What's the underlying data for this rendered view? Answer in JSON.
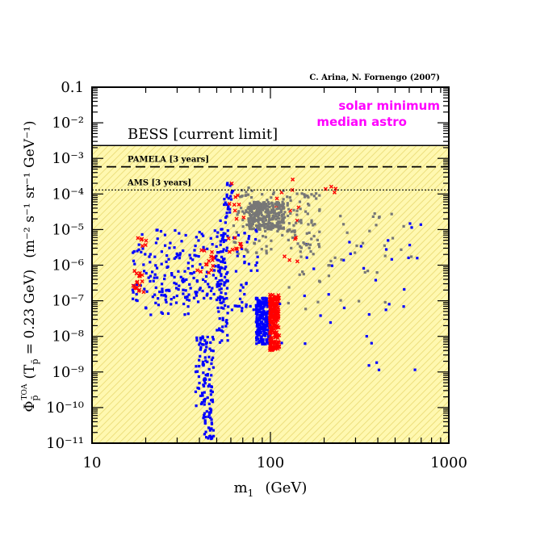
{
  "chart_data": {
    "type": "scatter",
    "credit": "C. Arina, N. Fornengo (2007)",
    "xlabel_main": "m",
    "xlabel_sub": "1",
    "xlabel_unit": "(GeV)",
    "ylabel_left": "Φ",
    "ylabel_sub": "p̄",
    "ylabel_sup": "TOA",
    "ylabel_mid": "(T",
    "ylabel_energy": " = 0.23 GeV)",
    "ylabel_units": "(m⁻² s⁻¹ sr⁻¹ GeV⁻¹)",
    "xscale": "log",
    "yscale": "log",
    "xlim": [
      10,
      1000
    ],
    "ylim": [
      1e-11,
      0.1
    ],
    "xticks": [
      {
        "value": 10,
        "label": "10"
      },
      {
        "value": 100,
        "label": "100"
      },
      {
        "value": 1000,
        "label": "1000"
      }
    ],
    "yticks": [
      {
        "value": 0.1,
        "label": "0.1"
      },
      {
        "value": 0.01,
        "label": "10⁻²"
      },
      {
        "value": 0.001,
        "label": "10⁻³"
      },
      {
        "value": 0.0001,
        "label": "10⁻⁴"
      },
      {
        "value": 1e-05,
        "label": "10⁻⁵"
      },
      {
        "value": 1e-06,
        "label": "10⁻⁶"
      },
      {
        "value": 1e-07,
        "label": "10⁻⁷"
      },
      {
        "value": 1e-08,
        "label": "10⁻⁸"
      },
      {
        "value": 1e-09,
        "label": "10⁻⁹"
      },
      {
        "value": 1e-10,
        "label": "10⁻¹⁰"
      },
      {
        "value": 1e-11,
        "label": "10⁻¹¹"
      }
    ],
    "legend": {
      "line1": "solar minimum",
      "line2": "median astro",
      "color": "#ff00ff",
      "placement": "top-right"
    },
    "limits": [
      {
        "name": "BESS",
        "label": "BESS [current limit]",
        "y": 0.0023,
        "style": "solid"
      },
      {
        "name": "PAMELA",
        "label": "PAMELA [3 years]",
        "y": 0.00058,
        "style": "dashed"
      },
      {
        "name": "AMS",
        "label": "AMS [3 years]",
        "y": 0.00013,
        "style": "dotted"
      }
    ],
    "excluded_region": {
      "from_y": 0.0023,
      "to_y": 1e-11,
      "fill": "#fff8b0",
      "hatch": "#e8d870"
    },
    "colors": {
      "blue": "#0000ff",
      "red": "#ff0000",
      "gray": "#777777",
      "axis": "#000000"
    },
    "series": [
      {
        "name": "blue",
        "marker": "square",
        "color": "#0000ff",
        "seed": 11,
        "groups": [
          {
            "x": [
              16.5,
              56
            ],
            "y": [
              1e-07,
              1e-05
            ],
            "n": 160
          },
          {
            "x": [
              20,
              40
            ],
            "y": [
              4e-08,
              5e-07
            ],
            "n": 50
          },
          {
            "x": [
              38,
              48
            ],
            "y": [
              1e-10,
              1e-08
            ],
            "n": 90
          },
          {
            "x": [
              42,
              48
            ],
            "y": [
              1.2e-11,
              1e-10
            ],
            "n": 35
          },
          {
            "x": [
              50,
              58
            ],
            "y": [
              5e-09,
              2e-05
            ],
            "n": 90
          },
          {
            "x": [
              55,
              62
            ],
            "y": [
              2e-05,
              0.00025
            ],
            "n": 25
          },
          {
            "x": [
              60,
              85
            ],
            "y": [
              4e-08,
              1e-05
            ],
            "n": 45
          },
          {
            "x": [
              83,
              100
            ],
            "y": [
              6e-09,
              1.2e-07
            ],
            "n": 240
          },
          {
            "x": [
              100,
              700
            ],
            "y": [
              1e-09,
              1.5e-05
            ],
            "n": 40
          }
        ]
      },
      {
        "name": "red",
        "marker": "cross",
        "color": "#ff0000",
        "seed": 23,
        "groups": [
          {
            "x": [
              99,
              112
            ],
            "y": [
              4e-09,
              1.5e-07
            ],
            "n": 210
          },
          {
            "x": [
              17,
              20
            ],
            "y": [
              1.5e-07,
              7e-07
            ],
            "n": 18
          },
          {
            "x": [
              18,
              20.5
            ],
            "y": [
              3e-06,
              6e-06
            ],
            "n": 6
          },
          {
            "x": [
              37,
              48
            ],
            "y": [
              6e-07,
              3e-06
            ],
            "n": 14
          },
          {
            "x": [
              58,
              72
            ],
            "y": [
              2e-06,
              0.0002
            ],
            "n": 18
          },
          {
            "x": [
              108,
              145
            ],
            "y": [
              1e-06,
              0.0003
            ],
            "n": 14
          },
          {
            "x": [
              200,
              240
            ],
            "y": [
              0.0001,
              0.0002
            ],
            "n": 4
          }
        ]
      },
      {
        "name": "gray",
        "marker": "square",
        "color": "#777777",
        "seed": 37,
        "groups": [
          {
            "x": [
              75,
              120
            ],
            "y": [
              1e-05,
              6e-05
            ],
            "n": 280
          },
          {
            "x": [
              62,
              190
            ],
            "y": [
              2e-06,
              0.00015
            ],
            "n": 140
          },
          {
            "x": [
              120,
              620
            ],
            "y": [
              5e-08,
              3e-05
            ],
            "n": 50
          }
        ]
      }
    ]
  }
}
